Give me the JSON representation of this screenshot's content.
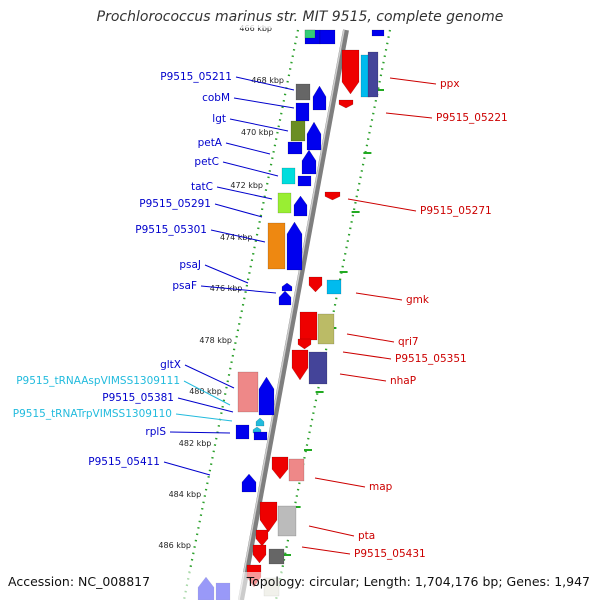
{
  "title": "Prochlorococcus marinus str. MIT 9515, complete genome",
  "accession": "Accession: NC_008817",
  "summary": "Topology: circular; Length: 1,704,176 bp; Genes: 1,947",
  "colors": {
    "backbone": "#888888",
    "tick_dots": "#22aa22",
    "label_forward": "#0000cc",
    "label_reverse": "#cc0000",
    "label_rna": "#22bbdd"
  },
  "scale_marks": [
    "468 kbp",
    "470 kbp",
    "472 kbp",
    "474 kbp",
    "476 kbp",
    "478 kbp",
    "480 kbp",
    "482 kbp",
    "484 kbp",
    "486 kbp"
  ],
  "genes_forward": [
    {
      "name": "P9515_05211",
      "color": "#666666"
    },
    {
      "name": "cobM",
      "color": "#0000ee"
    },
    {
      "name": "lgt",
      "color": "#6b8e23"
    },
    {
      "name": "petA",
      "color": "#0000ee"
    },
    {
      "name": "petC",
      "color": "#00dddd"
    },
    {
      "name": "tatC",
      "color": "#99ee33"
    },
    {
      "name": "P9515_05291",
      "color": "#0000ee"
    },
    {
      "name": "P9515_05301",
      "color": "#ee8811"
    },
    {
      "name": "psaJ",
      "color": "#0000ee"
    },
    {
      "name": "psaF",
      "color": "#0000ee"
    },
    {
      "name": "gltX",
      "color": "#ee8888"
    },
    {
      "name": "P9515_tRNAAspVIMSS1309111",
      "color": "#22bbdd"
    },
    {
      "name": "P9515_05381",
      "color": "#0000ee"
    },
    {
      "name": "P9515_tRNATrpVIMSS1309110",
      "color": "#22bbdd"
    },
    {
      "name": "rplS",
      "color": "#0000ee"
    },
    {
      "name": "P9515_05411",
      "color": "#0000ee"
    }
  ],
  "genes_reverse": [
    {
      "name": "ppx",
      "color": "#ee0000"
    },
    {
      "name": "P9515_05221",
      "color": "#ee0000"
    },
    {
      "name": "P9515_05271",
      "color": "#ee0000"
    },
    {
      "name": "gmk",
      "color": "#ee0000"
    },
    {
      "name": "qri7",
      "color": "#bbbb66"
    },
    {
      "name": "P9515_05351",
      "color": "#ee0000"
    },
    {
      "name": "nhaP",
      "color": "#444499"
    },
    {
      "name": "map",
      "color": "#ee0000"
    },
    {
      "name": "pta",
      "color": "#bbbbbb"
    },
    {
      "name": "P9515_05431",
      "color": "#666666"
    }
  ]
}
